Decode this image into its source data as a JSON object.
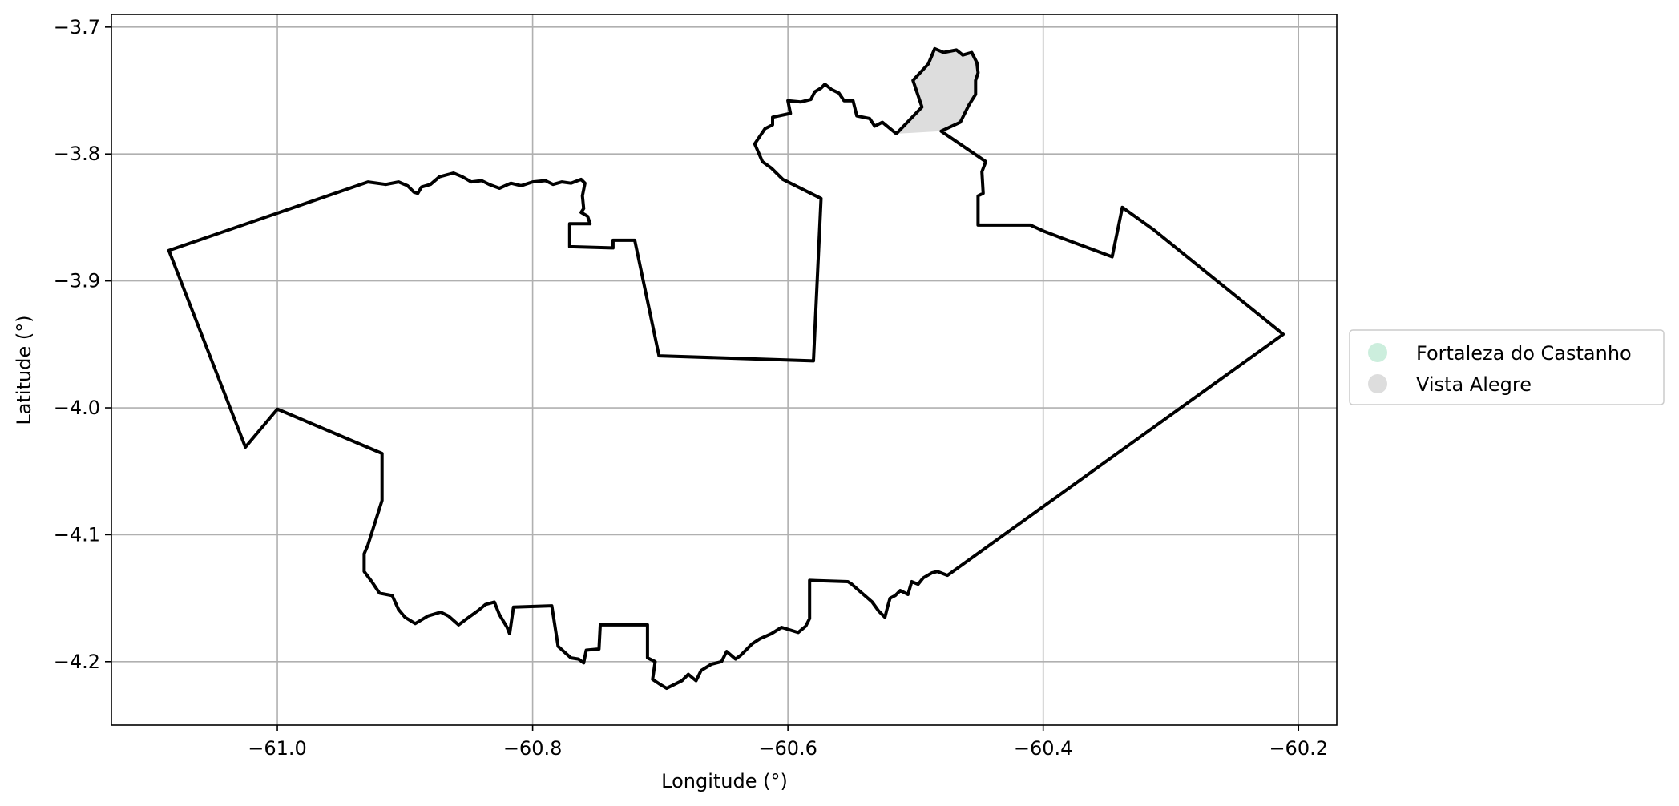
{
  "chart_data": {
    "type": "map",
    "xlabel": "Longitude (°)",
    "ylabel": "Latitude (°)",
    "xlim": [
      -61.13,
      -60.17
    ],
    "ylim": [
      -4.25,
      -3.69
    ],
    "xticks": [
      -61.0,
      -60.8,
      -60.6,
      -60.4,
      -60.2
    ],
    "yticks": [
      -3.7,
      -3.8,
      -3.9,
      -4.0,
      -4.1,
      -4.2
    ],
    "xtick_labels": [
      "−61.0",
      "−60.8",
      "−60.6",
      "−60.4",
      "−60.2"
    ],
    "ytick_labels": [
      "−3.7",
      "−3.8",
      "−3.9",
      "−4.0",
      "−4.1",
      "−4.2"
    ],
    "grid": true,
    "legend_position": "right",
    "legend": [
      {
        "name": "Fortaleza do Castanho",
        "color": "#cceedd"
      },
      {
        "name": "Vista Alegre",
        "color": "#dddddd"
      }
    ],
    "regions": [
      {
        "name": "Vista Alegre",
        "fill": "#dddddd",
        "coords": [
          [
            -60.515,
            -3.784
          ],
          [
            -60.495,
            -3.763
          ],
          [
            -60.502,
            -3.742
          ],
          [
            -60.49,
            -3.729
          ],
          [
            -60.485,
            -3.717
          ],
          [
            -60.478,
            -3.72
          ],
          [
            -60.468,
            -3.718
          ],
          [
            -60.463,
            -3.722
          ],
          [
            -60.456,
            -3.72
          ],
          [
            -60.452,
            -3.728
          ],
          [
            -60.451,
            -3.736
          ],
          [
            -60.453,
            -3.742
          ],
          [
            -60.453,
            -3.753
          ],
          [
            -60.458,
            -3.761
          ],
          [
            -60.461,
            -3.767
          ],
          [
            -60.465,
            -3.775
          ],
          [
            -60.48,
            -3.782
          ]
        ]
      }
    ],
    "boundary": [
      [
        -61.085,
        -3.876
      ],
      [
        -60.929,
        -3.822
      ],
      [
        -60.915,
        -3.824
      ],
      [
        -60.905,
        -3.822
      ],
      [
        -60.898,
        -3.825
      ],
      [
        -60.893,
        -3.83
      ],
      [
        -60.89,
        -3.831
      ],
      [
        -60.887,
        -3.826
      ],
      [
        -60.88,
        -3.824
      ],
      [
        -60.873,
        -3.818
      ],
      [
        -60.862,
        -3.815
      ],
      [
        -60.855,
        -3.818
      ],
      [
        -60.848,
        -3.822
      ],
      [
        -60.84,
        -3.821
      ],
      [
        -60.834,
        -3.824
      ],
      [
        -60.826,
        -3.827
      ],
      [
        -60.817,
        -3.823
      ],
      [
        -60.809,
        -3.825
      ],
      [
        -60.8,
        -3.822
      ],
      [
        -60.79,
        -3.821
      ],
      [
        -60.784,
        -3.824
      ],
      [
        -60.777,
        -3.822
      ],
      [
        -60.77,
        -3.823
      ],
      [
        -60.762,
        -3.82
      ],
      [
        -60.759,
        -3.823
      ],
      [
        -60.761,
        -3.833
      ],
      [
        -60.76,
        -3.843
      ],
      [
        -60.762,
        -3.846
      ],
      [
        -60.757,
        -3.849
      ],
      [
        -60.755,
        -3.855
      ],
      [
        -60.771,
        -3.855
      ],
      [
        -60.771,
        -3.873
      ],
      [
        -60.737,
        -3.874
      ],
      [
        -60.737,
        -3.868
      ],
      [
        -60.72,
        -3.868
      ],
      [
        -60.701,
        -3.959
      ],
      [
        -60.58,
        -3.963
      ],
      [
        -60.574,
        -3.835
      ],
      [
        -60.604,
        -3.82
      ],
      [
        -60.613,
        -3.811
      ],
      [
        -60.62,
        -3.806
      ],
      [
        -60.626,
        -3.792
      ],
      [
        -60.622,
        -3.786
      ],
      [
        -60.618,
        -3.78
      ],
      [
        -60.612,
        -3.777
      ],
      [
        -60.612,
        -3.771
      ],
      [
        -60.598,
        -3.768
      ],
      [
        -60.6,
        -3.758
      ],
      [
        -60.59,
        -3.759
      ],
      [
        -60.582,
        -3.757
      ],
      [
        -60.579,
        -3.751
      ],
      [
        -60.574,
        -3.748
      ],
      [
        -60.571,
        -3.745
      ],
      [
        -60.566,
        -3.749
      ],
      [
        -60.56,
        -3.752
      ],
      [
        -60.556,
        -3.758
      ],
      [
        -60.549,
        -3.758
      ],
      [
        -60.546,
        -3.77
      ],
      [
        -60.536,
        -3.772
      ],
      [
        -60.532,
        -3.778
      ],
      [
        -60.526,
        -3.775
      ],
      [
        -60.515,
        -3.784
      ],
      [
        -60.495,
        -3.763
      ],
      [
        -60.502,
        -3.742
      ],
      [
        -60.49,
        -3.729
      ],
      [
        -60.485,
        -3.717
      ],
      [
        -60.478,
        -3.72
      ],
      [
        -60.468,
        -3.718
      ],
      [
        -60.463,
        -3.722
      ],
      [
        -60.456,
        -3.72
      ],
      [
        -60.452,
        -3.728
      ],
      [
        -60.451,
        -3.736
      ],
      [
        -60.453,
        -3.742
      ],
      [
        -60.453,
        -3.753
      ],
      [
        -60.458,
        -3.761
      ],
      [
        -60.461,
        -3.767
      ],
      [
        -60.465,
        -3.775
      ],
      [
        -60.48,
        -3.782
      ],
      [
        -60.445,
        -3.806
      ],
      [
        -60.448,
        -3.814
      ],
      [
        -60.447,
        -3.831
      ],
      [
        -60.451,
        -3.833
      ],
      [
        -60.451,
        -3.856
      ],
      [
        -60.41,
        -3.856
      ],
      [
        -60.399,
        -3.861
      ],
      [
        -60.386,
        -3.866
      ],
      [
        -60.346,
        -3.881
      ],
      [
        -60.338,
        -3.842
      ],
      [
        -60.313,
        -3.86
      ],
      [
        -60.212,
        -3.942
      ],
      [
        -60.475,
        -4.132
      ],
      [
        -60.483,
        -4.129
      ],
      [
        -60.487,
        -4.13
      ],
      [
        -60.494,
        -4.134
      ],
      [
        -60.498,
        -4.139
      ],
      [
        -60.503,
        -4.137
      ],
      [
        -60.506,
        -4.147
      ],
      [
        -60.512,
        -4.144
      ],
      [
        -60.516,
        -4.148
      ],
      [
        -60.52,
        -4.15
      ],
      [
        -60.522,
        -4.157
      ],
      [
        -60.524,
        -4.165
      ],
      [
        -60.529,
        -4.16
      ],
      [
        -60.534,
        -4.153
      ],
      [
        -60.55,
        -4.139
      ],
      [
        -60.553,
        -4.137
      ],
      [
        -60.583,
        -4.136
      ],
      [
        -60.583,
        -4.166
      ],
      [
        -60.586,
        -4.172
      ],
      [
        -60.592,
        -4.177
      ],
      [
        -60.605,
        -4.173
      ],
      [
        -60.613,
        -4.178
      ],
      [
        -60.622,
        -4.182
      ],
      [
        -60.628,
        -4.186
      ],
      [
        -60.637,
        -4.195
      ],
      [
        -60.641,
        -4.198
      ],
      [
        -60.648,
        -4.192
      ],
      [
        -60.652,
        -4.2
      ],
      [
        -60.66,
        -4.202
      ],
      [
        -60.668,
        -4.207
      ],
      [
        -60.672,
        -4.215
      ],
      [
        -60.678,
        -4.21
      ],
      [
        -60.683,
        -4.215
      ],
      [
        -60.689,
        -4.218
      ],
      [
        -60.695,
        -4.221
      ],
      [
        -60.7,
        -4.218
      ],
      [
        -60.706,
        -4.214
      ],
      [
        -60.704,
        -4.2
      ],
      [
        -60.71,
        -4.197
      ],
      [
        -60.71,
        -4.171
      ],
      [
        -60.747,
        -4.171
      ],
      [
        -60.748,
        -4.19
      ],
      [
        -60.758,
        -4.191
      ],
      [
        -60.76,
        -4.201
      ],
      [
        -60.764,
        -4.198
      ],
      [
        -60.77,
        -4.197
      ],
      [
        -60.78,
        -4.188
      ],
      [
        -60.785,
        -4.156
      ],
      [
        -60.815,
        -4.157
      ],
      [
        -60.818,
        -4.178
      ],
      [
        -60.82,
        -4.173
      ],
      [
        -60.826,
        -4.163
      ],
      [
        -60.83,
        -4.153
      ],
      [
        -60.837,
        -4.155
      ],
      [
        -60.843,
        -4.16
      ],
      [
        -60.85,
        -4.165
      ],
      [
        -60.858,
        -4.171
      ],
      [
        -60.866,
        -4.164
      ],
      [
        -60.872,
        -4.161
      ],
      [
        -60.882,
        -4.164
      ],
      [
        -60.892,
        -4.17
      ],
      [
        -60.9,
        -4.165
      ],
      [
        -60.905,
        -4.159
      ],
      [
        -60.91,
        -4.148
      ],
      [
        -60.92,
        -4.146
      ],
      [
        -60.926,
        -4.137
      ],
      [
        -60.932,
        -4.129
      ],
      [
        -60.932,
        -4.115
      ],
      [
        -60.929,
        -4.108
      ],
      [
        -60.918,
        -4.073
      ],
      [
        -60.918,
        -4.036
      ],
      [
        -61.0,
        -4.001
      ],
      [
        -61.025,
        -4.031
      ],
      [
        -61.085,
        -3.876
      ]
    ]
  }
}
